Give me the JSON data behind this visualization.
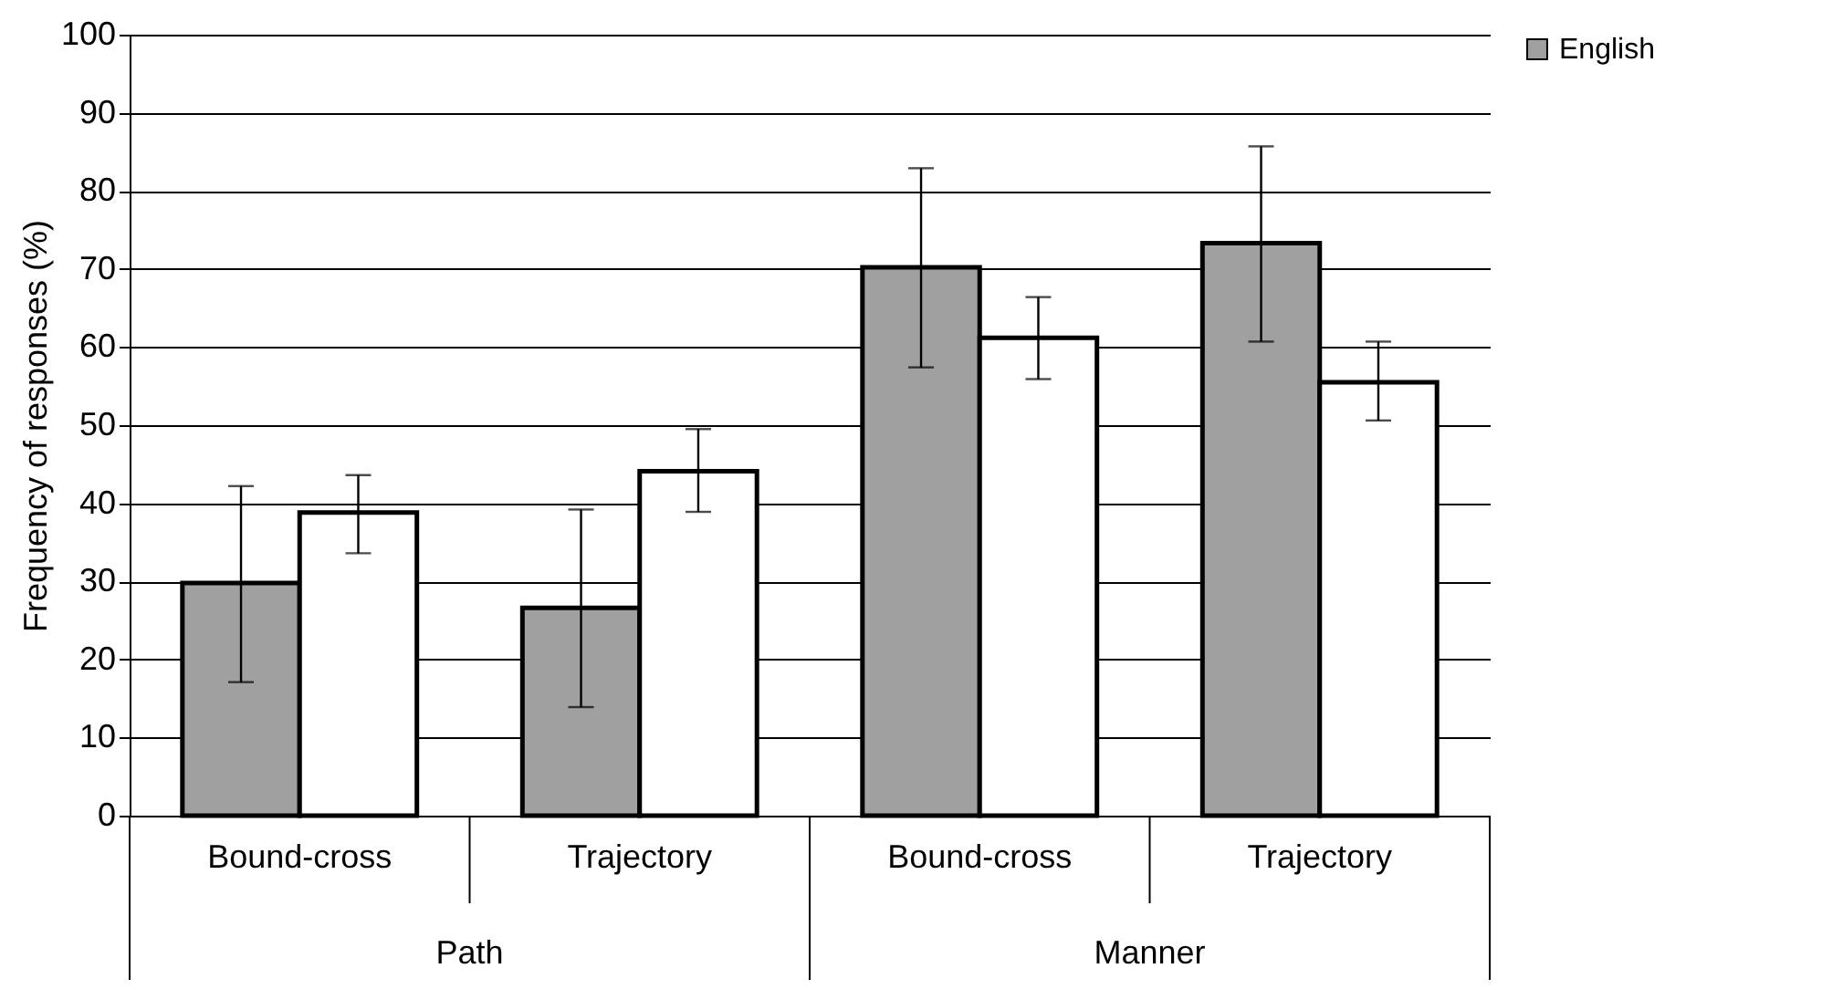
{
  "chart_data": {
    "type": "bar",
    "ylabel": "Frequency of responses (%)",
    "categories": [
      "Bound-cross",
      "Trajectory",
      "Bound-cross",
      "Trajectory"
    ],
    "series": [
      {
        "name": "English",
        "color": "#a0a0a0",
        "values": [
          29.8,
          26.6,
          70.2,
          73.3
        ],
        "errors": [
          [
            17.1,
            42.2
          ],
          [
            13.9,
            39.2
          ],
          [
            57.4,
            82.9
          ],
          [
            60.7,
            85.7
          ]
        ]
      },
      {
        "color": "#ffffff",
        "values": [
          38.8,
          44.1,
          61.2,
          55.5
        ],
        "errors": [
          [
            33.6,
            43.6
          ],
          [
            38.9,
            49.5
          ],
          [
            55.9,
            66.4
          ],
          [
            50.6,
            60.7
          ]
        ]
      }
    ],
    "annotations": [
      "Path",
      "Manner"
    ],
    "ylim": [
      0,
      100
    ],
    "yticks": [
      0,
      10,
      20,
      30,
      40,
      50,
      60,
      70,
      80,
      90,
      100
    ],
    "grid": "y",
    "legend": "right"
  }
}
